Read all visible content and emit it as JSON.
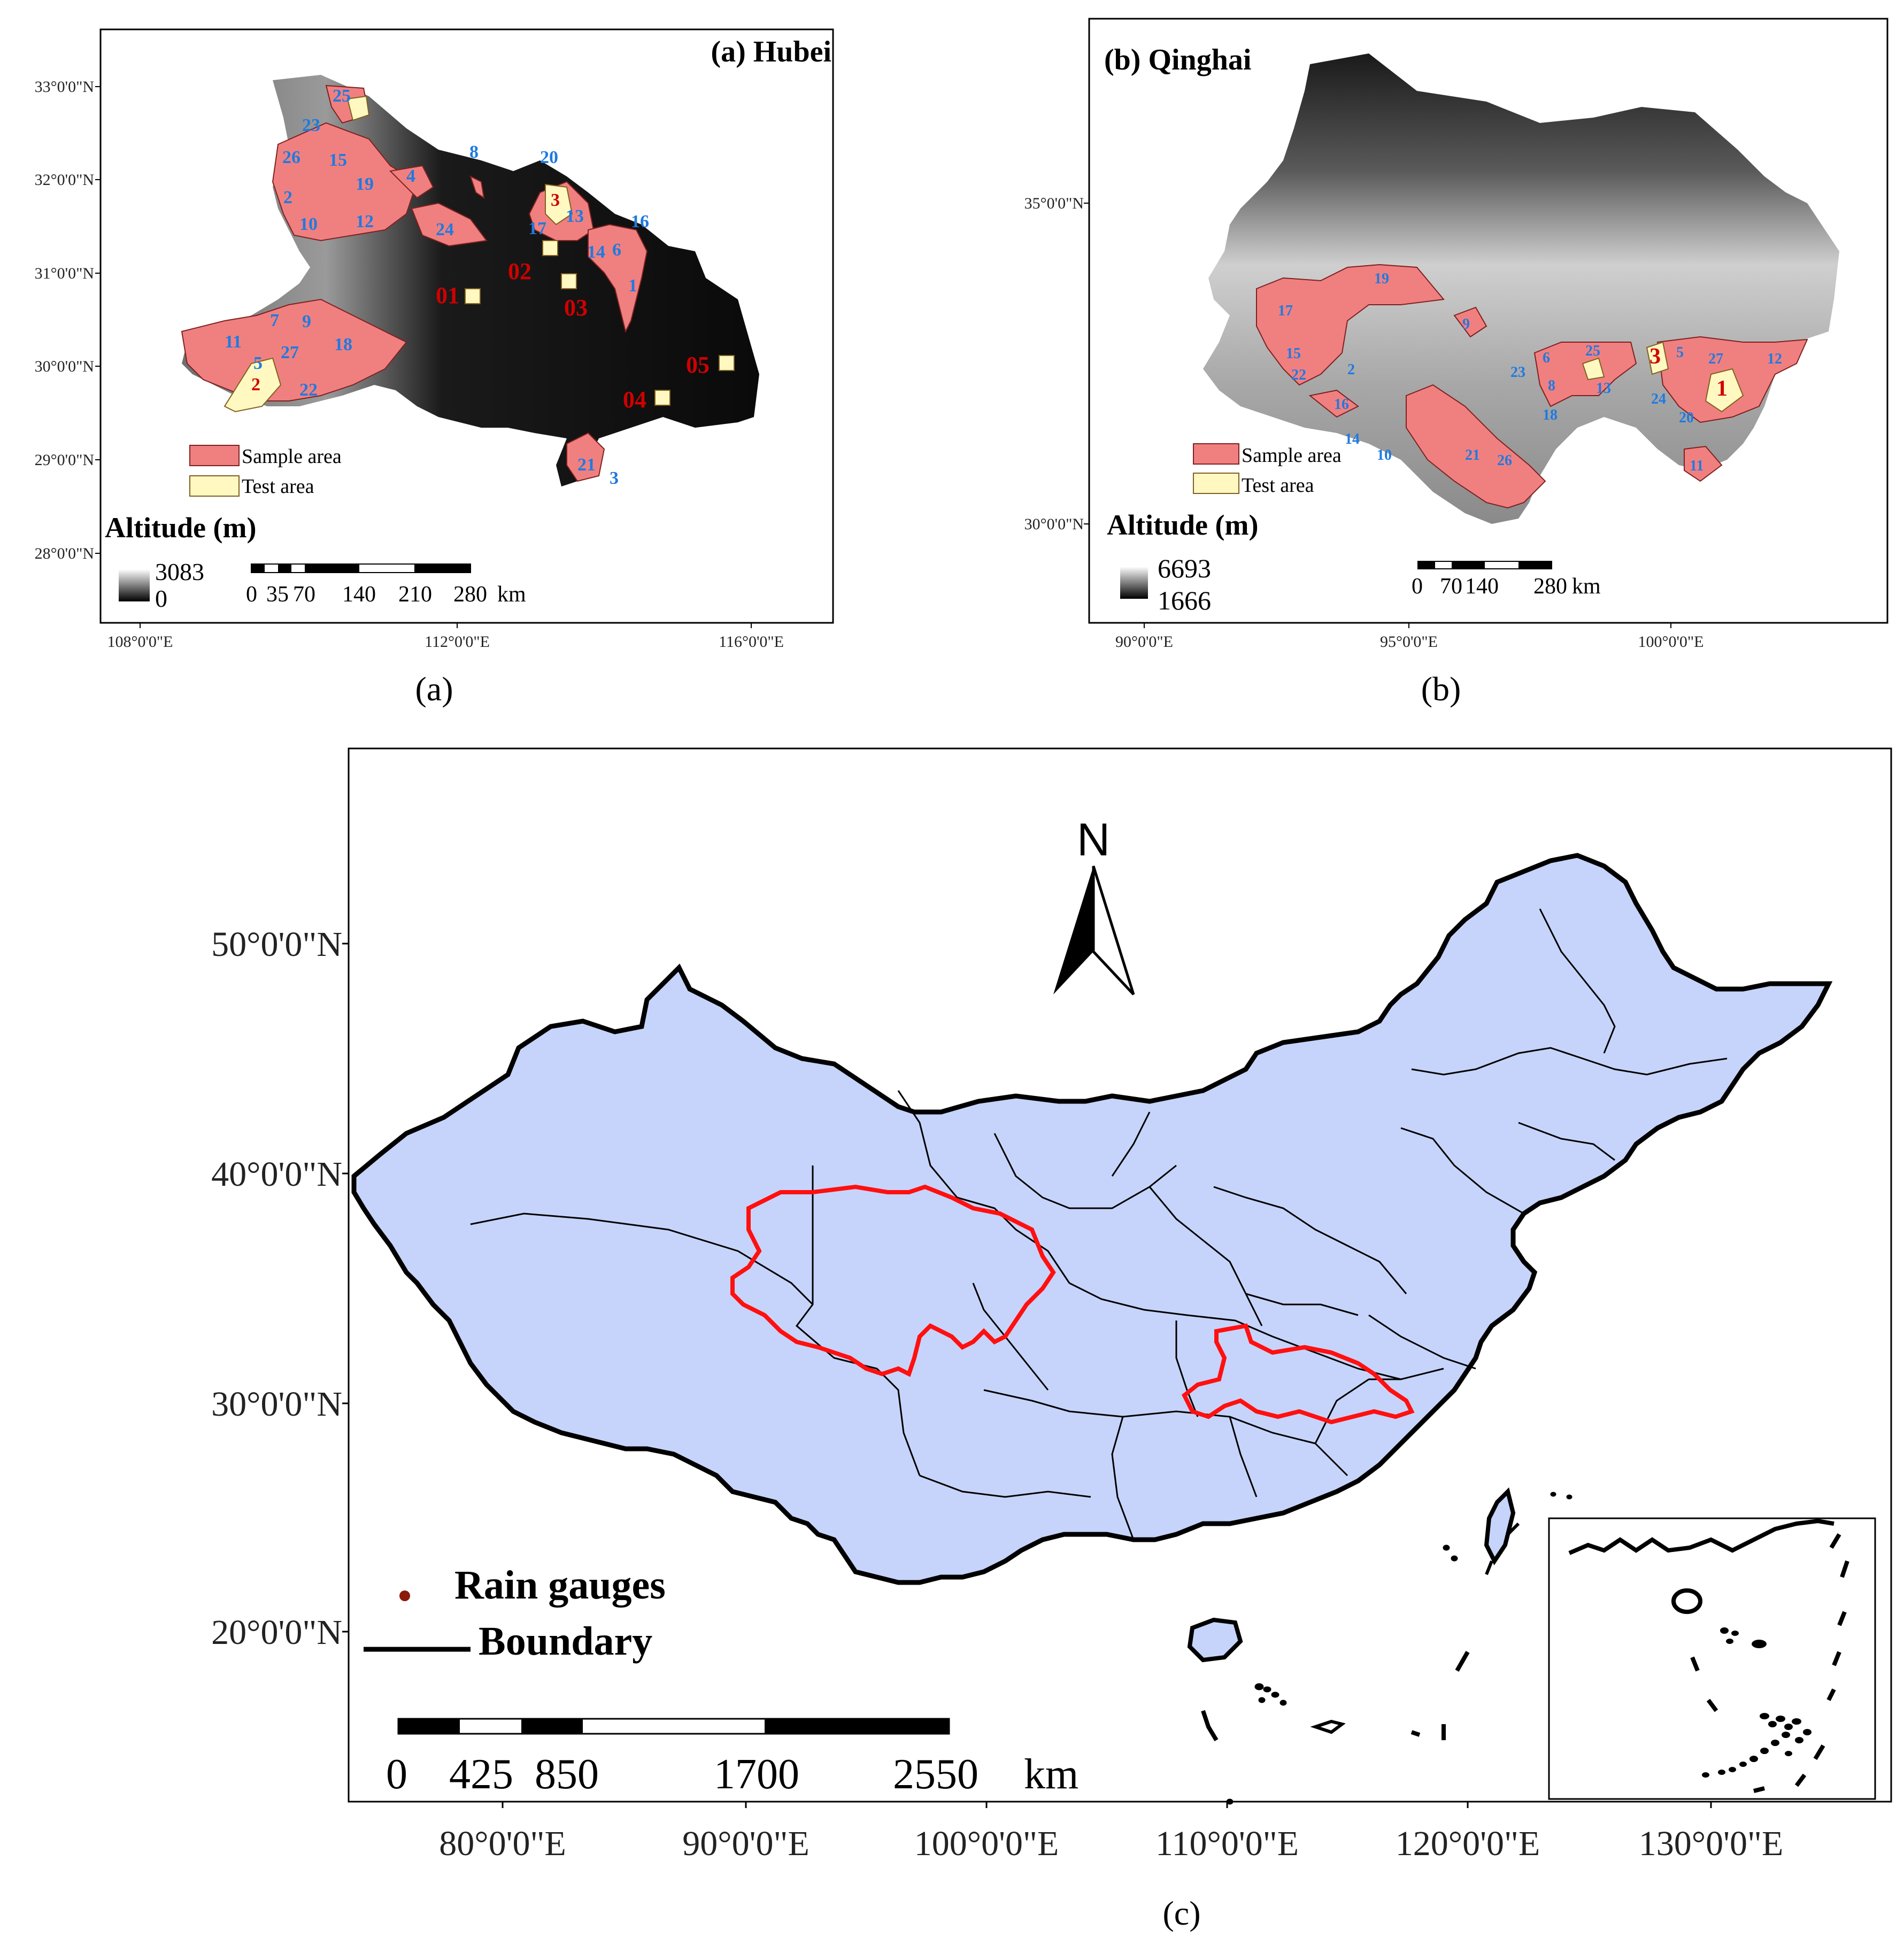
{
  "panel_a": {
    "title": "(a) Hubei",
    "caption": "(a)",
    "lat_labels": [
      "33°0'0\"N",
      "32°0'0\"N",
      "31°0'0\"N",
      "30°0'0\"N",
      "29°0'0\"N",
      "28°0'0\"N"
    ],
    "lon_labels": [
      "108°0'0\"E",
      "112°0'0\"E",
      "116°0'0\"E"
    ],
    "legend": {
      "sample": "Sample area",
      "test": "Test area"
    },
    "altitude_title": "Altitude (m)",
    "altitude_max": "3083",
    "altitude_min": "0",
    "scale_labels": [
      "0",
      "35",
      "70",
      "140",
      "210",
      "280",
      "km"
    ],
    "region_numbers": [
      "25",
      "23",
      "26",
      "15",
      "19",
      "4",
      "8",
      "20",
      "2",
      "10",
      "12",
      "24",
      "3",
      "17",
      "13",
      "14",
      "16",
      "6",
      "1",
      "7",
      "9",
      "11",
      "5",
      "27",
      "18",
      "22",
      "21",
      "3"
    ],
    "test_labels": [
      "01",
      "02",
      "03",
      "04",
      "05"
    ]
  },
  "panel_b": {
    "title": "(b) Qinghai",
    "caption": "(b)",
    "lat_labels": [
      "35°0'0\"N",
      "30°0'0\"N"
    ],
    "lon_labels": [
      "90°0'0\"E",
      "95°0'0\"E",
      "100°0'0\"E"
    ],
    "legend": {
      "sample": "Sample area",
      "test": "Test area"
    },
    "altitude_title": "Altitude (m)",
    "altitude_max": "6693",
    "altitude_min": "1666",
    "scale_labels": [
      "0",
      "70",
      "140",
      "280",
      "km"
    ],
    "region_numbers": [
      "19",
      "17",
      "9",
      "15",
      "22",
      "2",
      "16",
      "23",
      "6",
      "25",
      "8",
      "13",
      "18",
      "3",
      "5",
      "27",
      "12",
      "24",
      "20",
      "1",
      "14",
      "10",
      "21",
      "26",
      "11"
    ]
  },
  "panel_c": {
    "caption": "(c)",
    "north": "N",
    "lat_labels": [
      "50°0'0\"N",
      "40°0'0\"N",
      "30°0'0\"N",
      "20°0'0\"N"
    ],
    "lon_labels": [
      "80°0'0\"E",
      "90°0'0\"E",
      "100°0'0\"E",
      "110°0'0\"E",
      "120°0'0\"E",
      "130°0'0\"E"
    ],
    "legend": {
      "gauges": "Rain gauges",
      "boundary": "Boundary"
    },
    "scale_labels": [
      "0",
      "425",
      "850",
      "1700",
      "2550",
      "km"
    ]
  },
  "colors": {
    "sample_fill": "#f08080",
    "test_fill": "#fff8c0",
    "china_fill": "#c6d4fb",
    "highlight_boundary": "#ff1010",
    "label_blue": "#1f7ae0",
    "label_red": "#d00000"
  }
}
